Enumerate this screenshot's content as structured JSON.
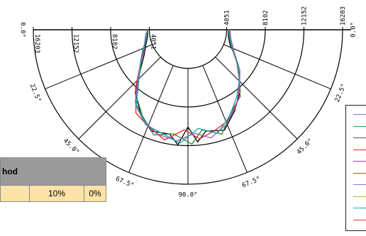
{
  "chart_data": {
    "type": "polar-line",
    "angle_labels": [
      "0.0°",
      "22.5°",
      "45.0°",
      "67.5°",
      "90.0°",
      "67.5°",
      "45.0°",
      "22.5°",
      "0.0°"
    ],
    "radial_labels_right": [
      "4051",
      "8102",
      "12152",
      "16203"
    ],
    "radial_labels_left": [
      "4051",
      "8102",
      "12152",
      "16203"
    ],
    "rmax": 16203,
    "angle_range": [
      -90,
      90
    ],
    "grid": true,
    "legend_position": "right",
    "series": [
      {
        "color": "#000000",
        "points": [
          [
            -90,
            4200
          ],
          [
            -80,
            4300
          ],
          [
            -70,
            4700
          ],
          [
            -60,
            5300
          ],
          [
            -50,
            6500
          ],
          [
            -40,
            8600
          ],
          [
            -30,
            10000
          ],
          [
            -20,
            11300
          ],
          [
            -10,
            11100
          ],
          [
            -5,
            12100
          ],
          [
            0,
            10200
          ],
          [
            5,
            11800
          ],
          [
            10,
            10800
          ],
          [
            20,
            11200
          ],
          [
            30,
            9800
          ],
          [
            40,
            8500
          ],
          [
            50,
            7000
          ],
          [
            60,
            5800
          ],
          [
            70,
            4700
          ],
          [
            80,
            4300
          ],
          [
            90,
            4200
          ]
        ]
      },
      {
        "color": "#2e8b2e",
        "points": [
          [
            -90,
            4200
          ],
          [
            -78,
            4450
          ],
          [
            -68,
            4900
          ],
          [
            -58,
            5700
          ],
          [
            -48,
            6800
          ],
          [
            -38,
            8800
          ],
          [
            -28,
            10200
          ],
          [
            -18,
            11600
          ],
          [
            -8,
            11000
          ],
          [
            2,
            12000
          ],
          [
            8,
            10600
          ],
          [
            18,
            11500
          ],
          [
            28,
            9700
          ],
          [
            38,
            8900
          ],
          [
            48,
            7200
          ],
          [
            58,
            6000
          ],
          [
            70,
            4800
          ],
          [
            90,
            4200
          ]
        ]
      },
      {
        "color": "#e82020",
        "points": [
          [
            -88,
            4300
          ],
          [
            -75,
            4600
          ],
          [
            -62,
            5400
          ],
          [
            -52,
            6400
          ],
          [
            -42,
            8200
          ],
          [
            -32,
            10300
          ],
          [
            -22,
            11000
          ],
          [
            -12,
            11800
          ],
          [
            -2,
            10500
          ],
          [
            6,
            11500
          ],
          [
            14,
            11000
          ],
          [
            24,
            10400
          ],
          [
            34,
            9200
          ],
          [
            44,
            7800
          ],
          [
            56,
            6200
          ],
          [
            66,
            5100
          ],
          [
            80,
            4500
          ],
          [
            90,
            4300
          ]
        ]
      },
      {
        "color": "#9b59d0",
        "points": [
          [
            -86,
            4400
          ],
          [
            -72,
            4800
          ],
          [
            -64,
            5100
          ],
          [
            -54,
            6200
          ],
          [
            -44,
            7600
          ],
          [
            -36,
            9400
          ],
          [
            -26,
            10600
          ],
          [
            -16,
            11400
          ],
          [
            -6,
            11700
          ],
          [
            4,
            10900
          ],
          [
            12,
            11600
          ],
          [
            22,
            10700
          ],
          [
            32,
            9500
          ],
          [
            42,
            8100
          ],
          [
            52,
            6900
          ],
          [
            64,
            5400
          ],
          [
            78,
            4600
          ],
          [
            90,
            4400
          ]
        ]
      },
      {
        "color": "#18a8a8",
        "points": [
          [
            -90,
            4250
          ],
          [
            -76,
            4550
          ],
          [
            -66,
            5200
          ],
          [
            -56,
            6000
          ],
          [
            -46,
            7100
          ],
          [
            -34,
            9700
          ],
          [
            -24,
            10900
          ],
          [
            -14,
            11200
          ],
          [
            -4,
            11900
          ],
          [
            6,
            10400
          ],
          [
            16,
            11300
          ],
          [
            26,
            10000
          ],
          [
            36,
            8700
          ],
          [
            46,
            7500
          ],
          [
            56,
            6300
          ],
          [
            68,
            5000
          ],
          [
            82,
            4400
          ],
          [
            90,
            4250
          ]
        ]
      }
    ]
  },
  "legend": {
    "colors": [
      "#8a6fd0",
      "#1a9a4a",
      "#555555",
      "#ee2222",
      "#c22fc2",
      "#8b6914",
      "#7a7ad8",
      "#a0c040",
      "#1ab0b0",
      "#ee3333"
    ]
  },
  "method_table": {
    "header": "hod",
    "cells": [
      "",
      "10%",
      "0%"
    ]
  }
}
